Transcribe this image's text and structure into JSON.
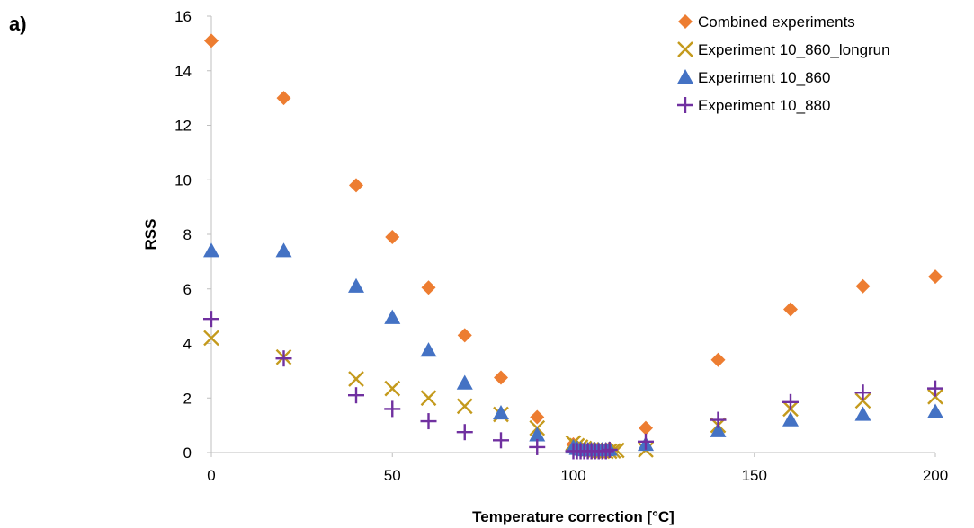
{
  "panel_label": "a)",
  "chart_data": {
    "type": "scatter",
    "title": "",
    "xlabel": "Temperature correction [°C]",
    "ylabel": "RSS",
    "xlim": [
      0,
      200
    ],
    "ylim": [
      0,
      16
    ],
    "xticks": [
      0,
      50,
      100,
      150,
      200
    ],
    "yticks": [
      0,
      2,
      4,
      6,
      8,
      10,
      12,
      14,
      16
    ],
    "grid": false,
    "legend_position": "top-right",
    "series": [
      {
        "name": "Combined experiments",
        "marker": "diamond",
        "color": "#ED7D31",
        "x": [
          0,
          20,
          40,
          50,
          60,
          70,
          80,
          90,
          100,
          101,
          102,
          103,
          104,
          105,
          106,
          107,
          108,
          109,
          110,
          120,
          140,
          160,
          180,
          200
        ],
        "y": [
          15.1,
          13.0,
          9.8,
          7.9,
          6.05,
          4.3,
          2.75,
          1.3,
          0.3,
          0.2,
          0.15,
          0.12,
          0.1,
          0.1,
          0.1,
          0.1,
          0.1,
          0.12,
          0.15,
          0.9,
          3.4,
          5.25,
          6.1,
          6.45
        ]
      },
      {
        "name": "Experiment 10_860_longrun",
        "marker": "x",
        "color": "#C49A1C",
        "x": [
          0,
          20,
          40,
          50,
          60,
          70,
          80,
          90,
          100,
          101,
          102,
          103,
          104,
          105,
          106,
          107,
          108,
          109,
          110,
          111,
          112,
          120,
          140,
          160,
          180,
          200
        ],
        "y": [
          4.2,
          3.5,
          2.7,
          2.35,
          2.0,
          1.7,
          1.4,
          0.9,
          0.35,
          0.25,
          0.2,
          0.15,
          0.12,
          0.1,
          0.08,
          0.06,
          0.05,
          0.04,
          0.05,
          0.06,
          0.08,
          0.1,
          1.0,
          1.6,
          1.9,
          2.05
        ]
      },
      {
        "name": "Experiment 10_860",
        "marker": "triangle",
        "color": "#4472C4",
        "x": [
          0,
          20,
          40,
          50,
          60,
          70,
          80,
          90,
          100,
          101,
          102,
          103,
          104,
          105,
          106,
          107,
          108,
          109,
          110,
          120,
          140,
          160,
          180,
          200
        ],
        "y": [
          7.4,
          7.4,
          6.1,
          4.95,
          3.75,
          2.55,
          1.45,
          0.65,
          0.2,
          0.15,
          0.12,
          0.1,
          0.1,
          0.1,
          0.1,
          0.1,
          0.1,
          0.1,
          0.12,
          0.3,
          0.8,
          1.2,
          1.4,
          1.5
        ]
      },
      {
        "name": "Experiment 10_880",
        "marker": "plus",
        "color": "#7030A0",
        "x": [
          0,
          20,
          40,
          50,
          60,
          70,
          80,
          90,
          100,
          101,
          102,
          103,
          104,
          105,
          106,
          107,
          108,
          109,
          110,
          120,
          140,
          160,
          180,
          200
        ],
        "y": [
          4.9,
          3.45,
          2.1,
          1.6,
          1.15,
          0.75,
          0.45,
          0.2,
          0.05,
          0.05,
          0.05,
          0.05,
          0.05,
          0.05,
          0.05,
          0.05,
          0.05,
          0.05,
          0.1,
          0.4,
          1.2,
          1.85,
          2.2,
          2.35
        ]
      }
    ]
  }
}
